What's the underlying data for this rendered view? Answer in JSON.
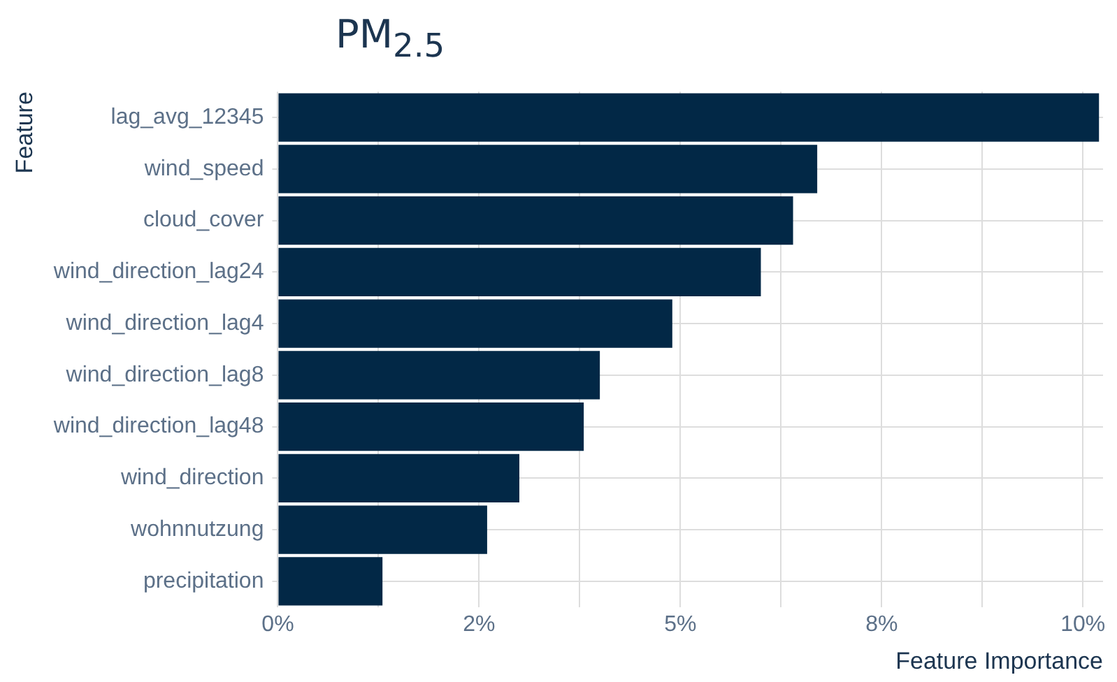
{
  "chart_data": {
    "type": "bar",
    "orientation": "horizontal",
    "title": "PM$_{2.5}$",
    "xlabel": "Feature Importance",
    "ylabel": "Feature",
    "categories": [
      "lag_avg_12345",
      "wind_speed",
      "cloud_cover",
      "wind_direction_lag24",
      "wind_direction_lag4",
      "wind_direction_lag8",
      "wind_direction_lag48",
      "wind_direction",
      "wohnnutzung",
      "precipitation"
    ],
    "values": [
      10.2,
      6.7,
      6.4,
      6.0,
      4.9,
      4.0,
      3.8,
      3.0,
      2.6,
      1.3
    ],
    "color": "#022846",
    "xlim": [
      0,
      10.25
    ],
    "xticks": [
      {
        "value": 0,
        "label": "0%"
      },
      {
        "value": 1.25,
        "label": null
      },
      {
        "value": 2.5,
        "label": "2%"
      },
      {
        "value": 3.75,
        "label": null
      },
      {
        "value": 5,
        "label": "5%"
      },
      {
        "value": 6.25,
        "label": null
      },
      {
        "value": 7.5,
        "label": "8%"
      },
      {
        "value": 8.75,
        "label": null
      },
      {
        "value": 10,
        "label": "10%"
      }
    ],
    "grid": true,
    "legend": false
  }
}
